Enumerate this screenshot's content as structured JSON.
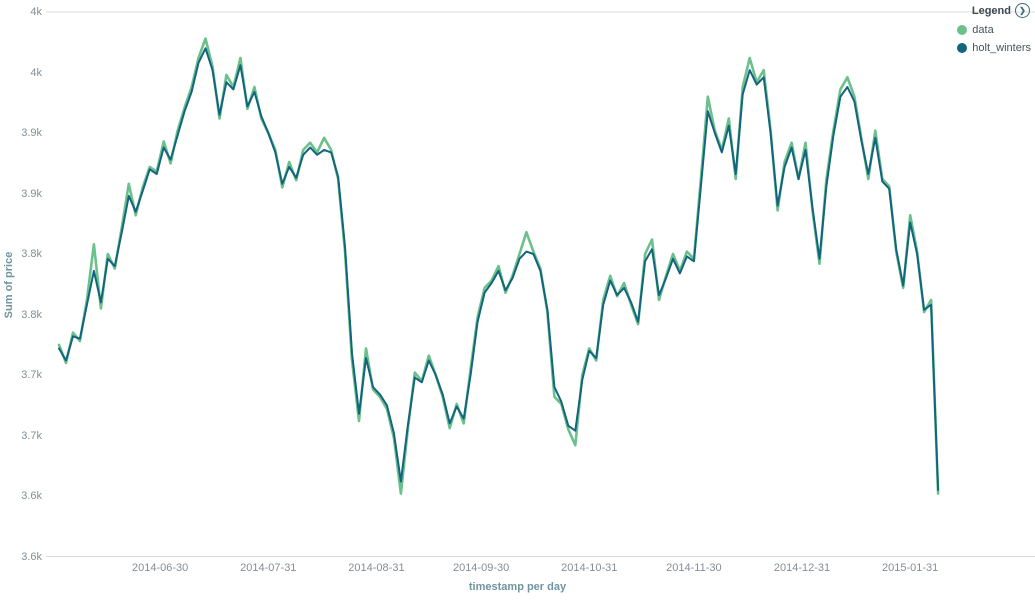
{
  "chart_data": {
    "type": "line",
    "title": "",
    "xlabel": "timestamp per day",
    "ylabel": "Sum of price",
    "grid": false,
    "x": [
      "2014-06-01",
      "2014-06-03",
      "2014-06-05",
      "2014-06-07",
      "2014-06-09",
      "2014-06-11",
      "2014-06-13",
      "2014-06-15",
      "2014-06-17",
      "2014-06-19",
      "2014-06-21",
      "2014-06-23",
      "2014-06-25",
      "2014-06-27",
      "2014-06-29",
      "2014-07-01",
      "2014-07-03",
      "2014-07-05",
      "2014-07-07",
      "2014-07-09",
      "2014-07-11",
      "2014-07-13",
      "2014-07-15",
      "2014-07-17",
      "2014-07-19",
      "2014-07-21",
      "2014-07-23",
      "2014-07-25",
      "2014-07-27",
      "2014-07-29",
      "2014-07-31",
      "2014-08-02",
      "2014-08-04",
      "2014-08-06",
      "2014-08-08",
      "2014-08-10",
      "2014-08-12",
      "2014-08-14",
      "2014-08-16",
      "2014-08-18",
      "2014-08-20",
      "2014-08-22",
      "2014-08-24",
      "2014-08-26",
      "2014-08-28",
      "2014-08-30",
      "2014-09-01",
      "2014-09-03",
      "2014-09-05",
      "2014-09-07",
      "2014-09-09",
      "2014-09-11",
      "2014-09-13",
      "2014-09-15",
      "2014-09-17",
      "2014-09-19",
      "2014-09-21",
      "2014-09-23",
      "2014-09-25",
      "2014-09-27",
      "2014-09-29",
      "2014-10-01",
      "2014-10-03",
      "2014-10-05",
      "2014-10-07",
      "2014-10-09",
      "2014-10-11",
      "2014-10-13",
      "2014-10-15",
      "2014-10-17",
      "2014-10-19",
      "2014-10-21",
      "2014-10-23",
      "2014-10-25",
      "2014-10-27",
      "2014-10-29",
      "2014-10-31",
      "2014-11-02",
      "2014-11-04",
      "2014-11-06",
      "2014-11-08",
      "2014-11-10",
      "2014-11-12",
      "2014-11-14",
      "2014-11-16",
      "2014-11-18",
      "2014-11-20",
      "2014-11-22",
      "2014-11-24",
      "2014-11-26",
      "2014-11-28",
      "2014-11-30",
      "2014-12-02",
      "2014-12-04",
      "2014-12-06",
      "2014-12-08",
      "2014-12-10",
      "2014-12-12",
      "2014-12-14",
      "2014-12-16",
      "2014-12-18",
      "2014-12-20",
      "2014-12-22",
      "2014-12-24",
      "2014-12-26",
      "2014-12-28",
      "2014-12-30",
      "2015-01-01",
      "2015-01-03",
      "2015-01-05",
      "2015-01-07",
      "2015-01-09",
      "2015-01-11",
      "2015-01-13",
      "2015-01-15",
      "2015-01-17",
      "2015-01-19",
      "2015-01-21",
      "2015-01-23",
      "2015-01-25",
      "2015-01-27",
      "2015-01-29",
      "2015-01-31",
      "2015-02-02",
      "2015-02-04",
      "2015-02-06",
      "2015-02-08"
    ],
    "series": [
      {
        "name": "data",
        "color": "#6CC08B",
        "values": [
          3725,
          3710,
          3735,
          3728,
          3762,
          3808,
          3755,
          3800,
          3788,
          3822,
          3858,
          3832,
          3855,
          3872,
          3868,
          3893,
          3875,
          3902,
          3921,
          3938,
          3962,
          3978,
          3955,
          3912,
          3948,
          3938,
          3962,
          3920,
          3938,
          3912,
          3900,
          3886,
          3855,
          3876,
          3861,
          3886,
          3892,
          3884,
          3896,
          3886,
          3862,
          3802,
          3712,
          3662,
          3722,
          3688,
          3682,
          3672,
          3648,
          3602,
          3655,
          3702,
          3695,
          3716,
          3700,
          3682,
          3656,
          3676,
          3660,
          3705,
          3748,
          3772,
          3778,
          3790,
          3768,
          3782,
          3800,
          3818,
          3802,
          3788,
          3752,
          3682,
          3676,
          3655,
          3642,
          3700,
          3722,
          3712,
          3762,
          3782,
          3765,
          3776,
          3758,
          3742,
          3800,
          3812,
          3762,
          3782,
          3800,
          3786,
          3802,
          3796,
          3862,
          3930,
          3902,
          3886,
          3912,
          3862,
          3938,
          3962,
          3942,
          3952,
          3902,
          3836,
          3876,
          3892,
          3862,
          3892,
          3836,
          3792,
          3862,
          3902,
          3936,
          3946,
          3930,
          3896,
          3862,
          3902,
          3862,
          3856,
          3802,
          3772,
          3832,
          3802,
          3752,
          3762,
          3602
        ]
      },
      {
        "name": "holt_winters",
        "color": "#11657D",
        "values": [
          3722,
          3712,
          3732,
          3730,
          3758,
          3786,
          3760,
          3796,
          3790,
          3818,
          3848,
          3835,
          3852,
          3870,
          3866,
          3888,
          3878,
          3898,
          3918,
          3934,
          3958,
          3970,
          3952,
          3915,
          3942,
          3936,
          3956,
          3922,
          3934,
          3914,
          3900,
          3884,
          3858,
          3872,
          3863,
          3882,
          3888,
          3882,
          3886,
          3884,
          3864,
          3806,
          3718,
          3668,
          3714,
          3690,
          3684,
          3675,
          3652,
          3612,
          3658,
          3698,
          3694,
          3712,
          3700,
          3684,
          3660,
          3674,
          3664,
          3700,
          3744,
          3768,
          3776,
          3786,
          3770,
          3780,
          3796,
          3802,
          3800,
          3786,
          3754,
          3690,
          3678,
          3658,
          3654,
          3696,
          3720,
          3714,
          3758,
          3778,
          3766,
          3772,
          3760,
          3744,
          3794,
          3804,
          3766,
          3780,
          3796,
          3784,
          3798,
          3794,
          3856,
          3918,
          3900,
          3884,
          3906,
          3866,
          3932,
          3952,
          3940,
          3946,
          3900,
          3840,
          3872,
          3888,
          3862,
          3886,
          3838,
          3796,
          3856,
          3898,
          3930,
          3938,
          3926,
          3894,
          3866,
          3896,
          3860,
          3854,
          3804,
          3774,
          3826,
          3800,
          3754,
          3758,
          3605
        ]
      }
    ],
    "y_axis": {
      "min": 3550,
      "max": 4000,
      "ticks": [
        {
          "value": 4000,
          "label": "4k"
        },
        {
          "value": 3950,
          "label": "4k"
        },
        {
          "value": 3900,
          "label": "3.9k"
        },
        {
          "value": 3850,
          "label": "3.9k"
        },
        {
          "value": 3800,
          "label": "3.8k"
        },
        {
          "value": 3750,
          "label": "3.8k"
        },
        {
          "value": 3700,
          "label": "3.7k"
        },
        {
          "value": 3650,
          "label": "3.7k"
        },
        {
          "value": 3600,
          "label": "3.6k"
        },
        {
          "value": 3550,
          "label": "3.6k"
        }
      ]
    },
    "x_axis": {
      "ticks": [
        "2014-06-30",
        "2014-07-31",
        "2014-08-31",
        "2014-09-30",
        "2014-10-31",
        "2014-11-30",
        "2014-12-31",
        "2015-01-31"
      ]
    },
    "legend": {
      "title": "Legend",
      "toggle_icon": "chevron-right-circle",
      "position": "top-right",
      "items": [
        {
          "label": "data",
          "color": "#6CC08B"
        },
        {
          "label": "holt_winters",
          "color": "#11657D"
        }
      ]
    }
  },
  "colors": {
    "axis_text": "#848e96",
    "axis_title": "#6f949e",
    "legend_text": "#44545c",
    "border": "#d9dde0",
    "background": "#ffffff"
  }
}
